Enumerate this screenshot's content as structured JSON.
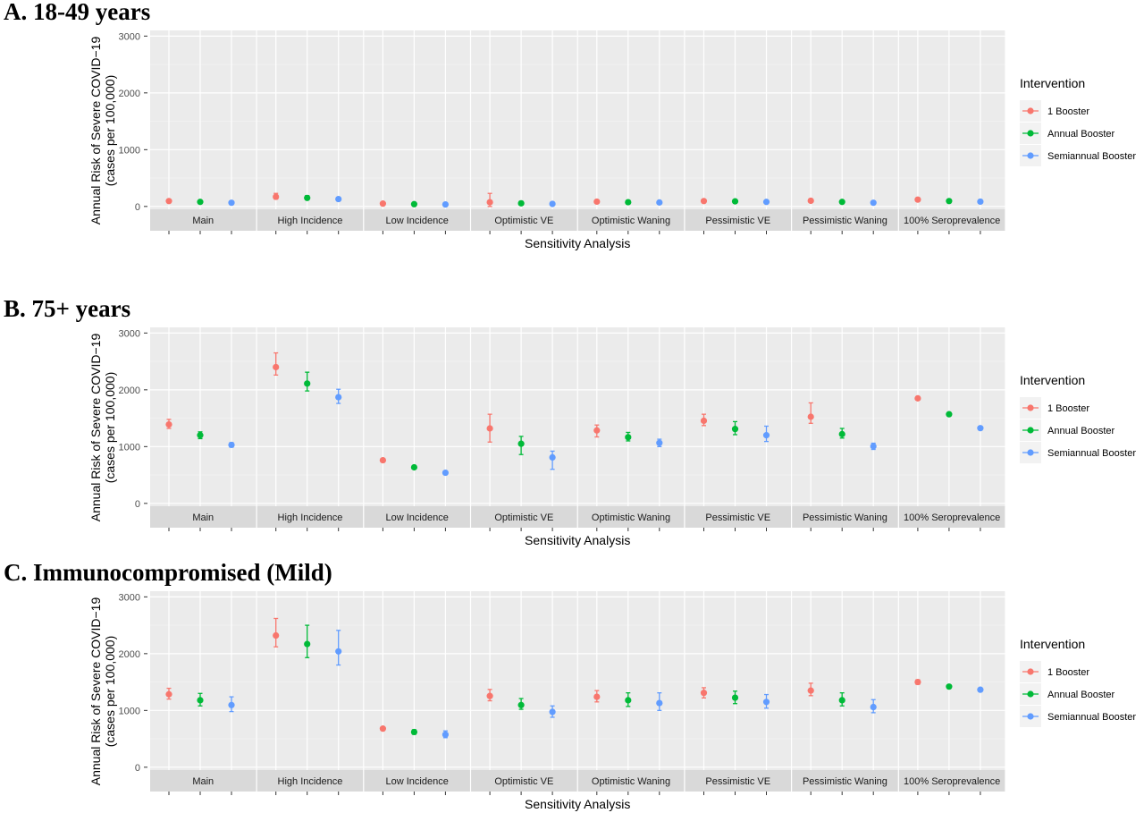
{
  "chart_data": [
    {
      "type": "scatter",
      "title": "A.   18-49 years",
      "xlabel": "Sensitivity Analysis",
      "ylabel": [
        "Annual Risk of Severe COVID−19",
        "(cases per 100,000)"
      ],
      "ylim": [
        -50,
        3100
      ],
      "yticks": [
        0,
        1000,
        2000,
        3000
      ],
      "grid": true,
      "facets": [
        "Main",
        "High Incidence",
        "Low Incidence",
        "Optimistic VE",
        "Optimistic Waning",
        "Pessimistic VE",
        "Pessimistic Waning",
        "100% Seroprevalence"
      ],
      "legend": {
        "title": "Intervention",
        "position": "right"
      },
      "series": [
        {
          "name": "1 Booster",
          "color": "#F8766D",
          "values": [
            95,
            170,
            50,
            75,
            85,
            95,
            100,
            120
          ],
          "lower": [
            80,
            130,
            40,
            0,
            75,
            85,
            85,
            105
          ],
          "upper": [
            110,
            230,
            60,
            230,
            95,
            105,
            115,
            135
          ]
        },
        {
          "name": "Annual Booster",
          "color": "#00BA38",
          "values": [
            80,
            150,
            40,
            55,
            75,
            90,
            80,
            95
          ],
          "lower": [
            70,
            120,
            32,
            25,
            65,
            80,
            70,
            85
          ],
          "upper": [
            90,
            190,
            48,
            90,
            85,
            100,
            90,
            105
          ]
        },
        {
          "name": "Semiannual Booster",
          "color": "#619CFF",
          "values": [
            65,
            130,
            35,
            45,
            70,
            80,
            65,
            85
          ],
          "lower": [
            55,
            110,
            28,
            25,
            60,
            70,
            55,
            75
          ],
          "upper": [
            75,
            150,
            42,
            65,
            80,
            90,
            75,
            95
          ]
        }
      ]
    },
    {
      "type": "scatter",
      "title": "B.   75+ years",
      "xlabel": "Sensitivity Analysis",
      "ylabel": [
        "Annual Risk of Severe COVID−19",
        "(cases per 100,000)"
      ],
      "ylim": [
        -50,
        3100
      ],
      "yticks": [
        0,
        1000,
        2000,
        3000
      ],
      "grid": true,
      "facets": [
        "Main",
        "High Incidence",
        "Low Incidence",
        "Optimistic VE",
        "Optimistic Waning",
        "Pessimistic VE",
        "Pessimistic Waning",
        "100% Seroprevalence"
      ],
      "legend": {
        "title": "Intervention",
        "position": "right"
      },
      "series": [
        {
          "name": "1 Booster",
          "color": "#F8766D",
          "values": [
            1390,
            2400,
            760,
            1320,
            1285,
            1455,
            1525,
            1850
          ],
          "lower": [
            1320,
            2260,
            730,
            1080,
            1170,
            1370,
            1410,
            1820
          ],
          "upper": [
            1480,
            2650,
            790,
            1570,
            1380,
            1570,
            1770,
            1880
          ]
        },
        {
          "name": "Annual Booster",
          "color": "#00BA38",
          "values": [
            1200,
            2110,
            635,
            1050,
            1165,
            1310,
            1220,
            1570
          ],
          "lower": [
            1140,
            1980,
            610,
            860,
            1100,
            1210,
            1150,
            1545
          ],
          "upper": [
            1260,
            2310,
            660,
            1180,
            1250,
            1440,
            1320,
            1595
          ]
        },
        {
          "name": "Semiannual Booster",
          "color": "#619CFF",
          "values": [
            1030,
            1870,
            540,
            810,
            1065,
            1200,
            1005,
            1325
          ],
          "lower": [
            990,
            1760,
            520,
            600,
            1000,
            1090,
            950,
            1300
          ],
          "upper": [
            1070,
            2010,
            560,
            920,
            1130,
            1360,
            1060,
            1350
          ]
        }
      ]
    },
    {
      "type": "scatter",
      "title": "C.   Immunocompromised (Mild)",
      "xlabel": "Sensitivity Analysis",
      "ylabel": [
        "Annual Risk of Severe COVID−19",
        "(cases per 100,000)"
      ],
      "ylim": [
        -50,
        3100
      ],
      "yticks": [
        0,
        1000,
        2000,
        3000
      ],
      "grid": true,
      "facets": [
        "Main",
        "High Incidence",
        "Low Incidence",
        "Optimistic VE",
        "Optimistic Waning",
        "Pessimistic VE",
        "Pessimistic Waning",
        "100% Seroprevalence"
      ],
      "legend": {
        "title": "Intervention",
        "position": "right"
      },
      "series": [
        {
          "name": "1 Booster",
          "color": "#F8766D",
          "values": [
            1285,
            2320,
            680,
            1255,
            1240,
            1310,
            1350,
            1500
          ],
          "lower": [
            1200,
            2120,
            650,
            1170,
            1150,
            1220,
            1260,
            1460
          ],
          "upper": [
            1390,
            2620,
            710,
            1370,
            1350,
            1400,
            1480,
            1540
          ]
        },
        {
          "name": "Annual Booster",
          "color": "#00BA38",
          "values": [
            1180,
            2170,
            620,
            1095,
            1180,
            1225,
            1180,
            1420
          ],
          "lower": [
            1080,
            1930,
            580,
            1020,
            1070,
            1120,
            1080,
            1395
          ],
          "upper": [
            1300,
            2500,
            660,
            1210,
            1310,
            1340,
            1310,
            1445
          ]
        },
        {
          "name": "Semiannual Booster",
          "color": "#619CFF",
          "values": [
            1095,
            2040,
            575,
            975,
            1130,
            1150,
            1060,
            1365
          ],
          "lower": [
            980,
            1800,
            520,
            880,
            1000,
            1040,
            960,
            1340
          ],
          "upper": [
            1240,
            2410,
            640,
            1080,
            1310,
            1280,
            1190,
            1390
          ]
        }
      ]
    }
  ]
}
